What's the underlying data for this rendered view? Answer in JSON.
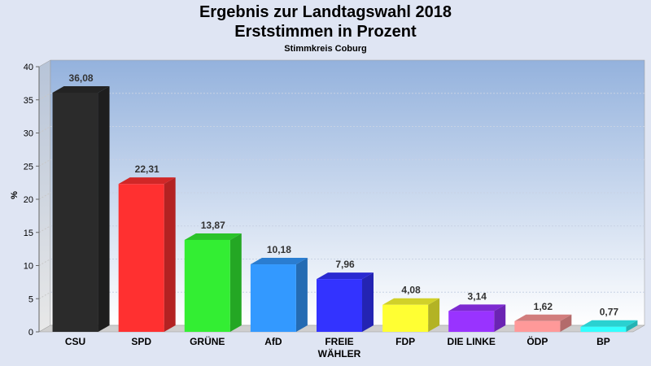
{
  "chart_data": {
    "type": "bar",
    "title": "Ergebnis zur Landtagswahl 2018",
    "subtitle": "Erststimmen in Prozent",
    "caption": "Stimmkreis Coburg",
    "ylabel": "%",
    "xlabel": "",
    "ylim": [
      0,
      40
    ],
    "yticks": [
      0,
      5,
      10,
      15,
      20,
      25,
      30,
      35,
      40
    ],
    "categories": [
      "CSU",
      "SPD",
      "GRÜNE",
      "AfD",
      "FREIE\nWÄHLER",
      "FDP",
      "DIE LINKE",
      "ÖDP",
      "BP"
    ],
    "values": [
      36.08,
      22.31,
      13.87,
      10.18,
      7.96,
      4.08,
      3.14,
      1.62,
      0.77
    ],
    "value_labels": [
      "36,08",
      "22,31",
      "13,87",
      "10,18",
      "7,96",
      "4,08",
      "3,14",
      "1,62",
      "0,77"
    ],
    "colors": [
      "#2b2b2b",
      "#ff3030",
      "#33ee33",
      "#3399ff",
      "#3333ff",
      "#ffff33",
      "#9933ff",
      "#ff9999",
      "#33ffff"
    ],
    "grid": true,
    "legend": "none"
  }
}
